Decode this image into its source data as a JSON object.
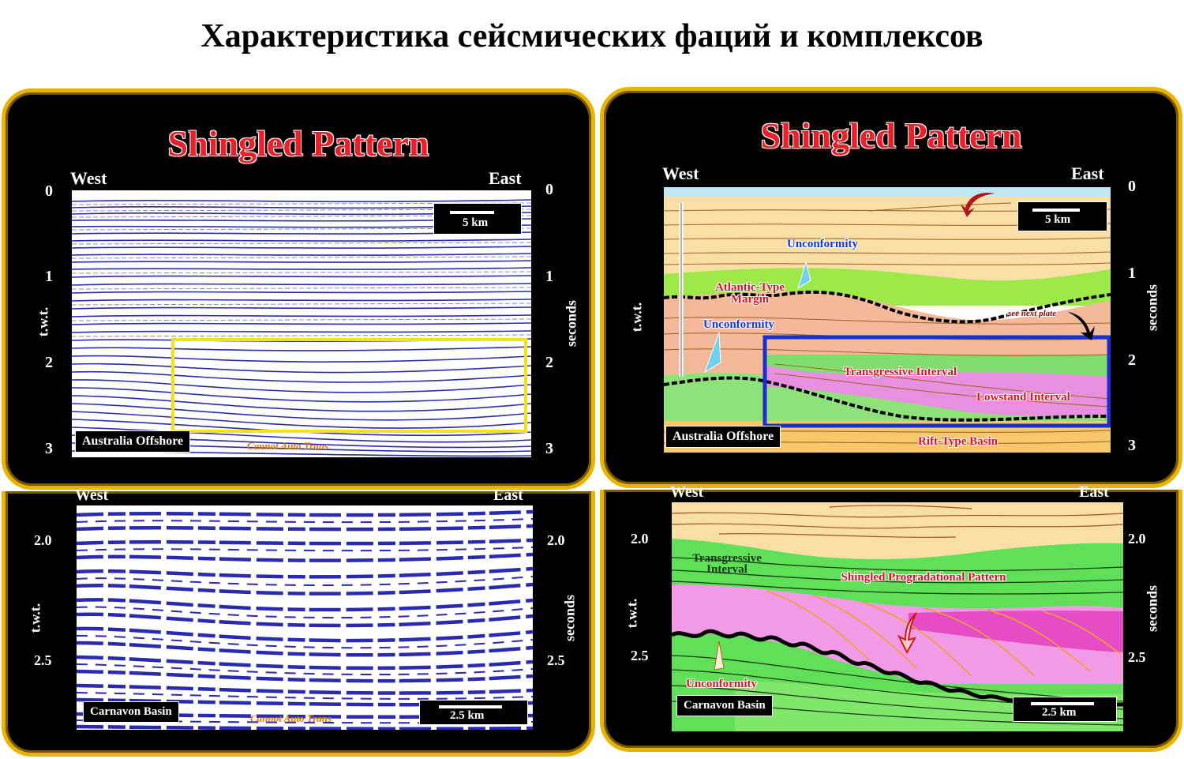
{
  "title": "Характеристика сейсмических фаций и комплексов",
  "panels": {
    "top_left": {
      "heading": "Shingled Pattern",
      "west": "West",
      "east": "East",
      "ticks": [
        "0",
        "1",
        "2",
        "3"
      ],
      "left_axis": "t.w.t.",
      "right_axis": "seconds",
      "location": "Australia Offshore",
      "scale": "5 km",
      "credit": "Cannot Auto Trans"
    },
    "top_right": {
      "heading": "Shingled Pattern",
      "west": "West",
      "east": "East",
      "ticks": [
        "0",
        "1",
        "2",
        "3"
      ],
      "left_axis": "t.w.t.",
      "right_axis": "seconds",
      "location": "Australia Offshore",
      "scale": "5 km",
      "annotations": {
        "unconformity_1": "Unconformity",
        "atlantic": "Atlantic-Type Margin",
        "unconformity_2": "Unconformity",
        "see_next": "see next plate",
        "transgressive": "Transgressive Interval",
        "lowstand": "Lowstand Interval",
        "rift": "Rift-Type Basin"
      }
    },
    "bottom_left": {
      "west": "West",
      "east": "East",
      "ticks": [
        "2.0",
        "2.5"
      ],
      "left_axis": "t.w.t.",
      "right_axis": "seconds",
      "location": "Carnavon Basin",
      "scale": "2.5 km",
      "credit": "Cannot Auto Trans"
    },
    "bottom_right": {
      "west": "West",
      "east": "East",
      "ticks": [
        "2.0",
        "2.5"
      ],
      "left_axis": "t.w.t.",
      "right_axis": "seconds",
      "location": "Carnavon Basin",
      "scale": "2.5 km",
      "annotations": {
        "transgressive": "Transgressive Interval",
        "shingled": "Shingled Progradational Pattern",
        "unconformity": "Unconformity"
      }
    }
  },
  "colors": {
    "frame": "#e8b400",
    "seismic": "#2a2ab0",
    "highlight_box": "#f2e21a",
    "interval_box": "#1b2fd0"
  }
}
